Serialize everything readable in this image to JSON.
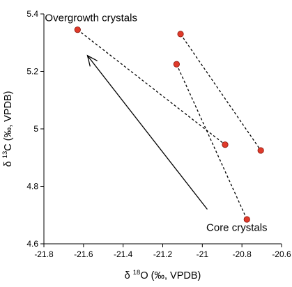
{
  "chart_data": {
    "type": "scatter",
    "title": "",
    "xlabel": {
      "delta": "δ",
      "sup": "18",
      "rest": "O (‰, VPDB)"
    },
    "ylabel": {
      "delta": "δ",
      "sup": "13",
      "rest": "C (‰, VPDB)"
    },
    "xlim": [
      -21.8,
      -20.6
    ],
    "ylim": [
      4.6,
      5.4
    ],
    "xticks": [
      -21.8,
      -21.6,
      -21.4,
      -21.2,
      -21.0,
      -20.8,
      -20.6
    ],
    "xtick_labels": [
      "-21.8",
      "-21.6",
      "-21.4",
      "-21.2",
      "-21",
      "-20.8",
      "-20.6"
    ],
    "yticks": [
      4.6,
      4.8,
      5.0,
      5.2,
      5.4
    ],
    "ytick_labels": [
      "4.6",
      "4.8",
      "5",
      "5.2",
      "5.4"
    ],
    "grid": false,
    "points": [
      {
        "x": -21.63,
        "y": 5.345
      },
      {
        "x": -21.11,
        "y": 5.33
      },
      {
        "x": -21.13,
        "y": 5.225
      },
      {
        "x": -20.885,
        "y": 4.945
      },
      {
        "x": -20.705,
        "y": 4.925
      },
      {
        "x": -20.775,
        "y": 4.685
      }
    ],
    "pairs": [
      {
        "from": {
          "x": -21.63,
          "y": 5.345
        },
        "to": {
          "x": -20.885,
          "y": 4.945
        }
      },
      {
        "from": {
          "x": -21.11,
          "y": 5.33
        },
        "to": {
          "x": -20.705,
          "y": 4.925
        }
      },
      {
        "from": {
          "x": -21.13,
          "y": 5.225
        },
        "to": {
          "x": -20.775,
          "y": 4.685
        }
      }
    ],
    "trend_arrow": {
      "from": {
        "x": -20.975,
        "y": 4.72
      },
      "to": {
        "x": -21.58,
        "y": 5.255
      }
    },
    "annotations": [
      {
        "text": "Overgrowth crystals",
        "x": -21.795,
        "y": 5.375
      },
      {
        "text": "Core crystals",
        "x": -20.98,
        "y": 4.645
      }
    ],
    "colors": {
      "point_fill": "#e03a2a",
      "point_stroke": "#8a1a10",
      "line": "#000000",
      "axis": "#000000"
    }
  }
}
